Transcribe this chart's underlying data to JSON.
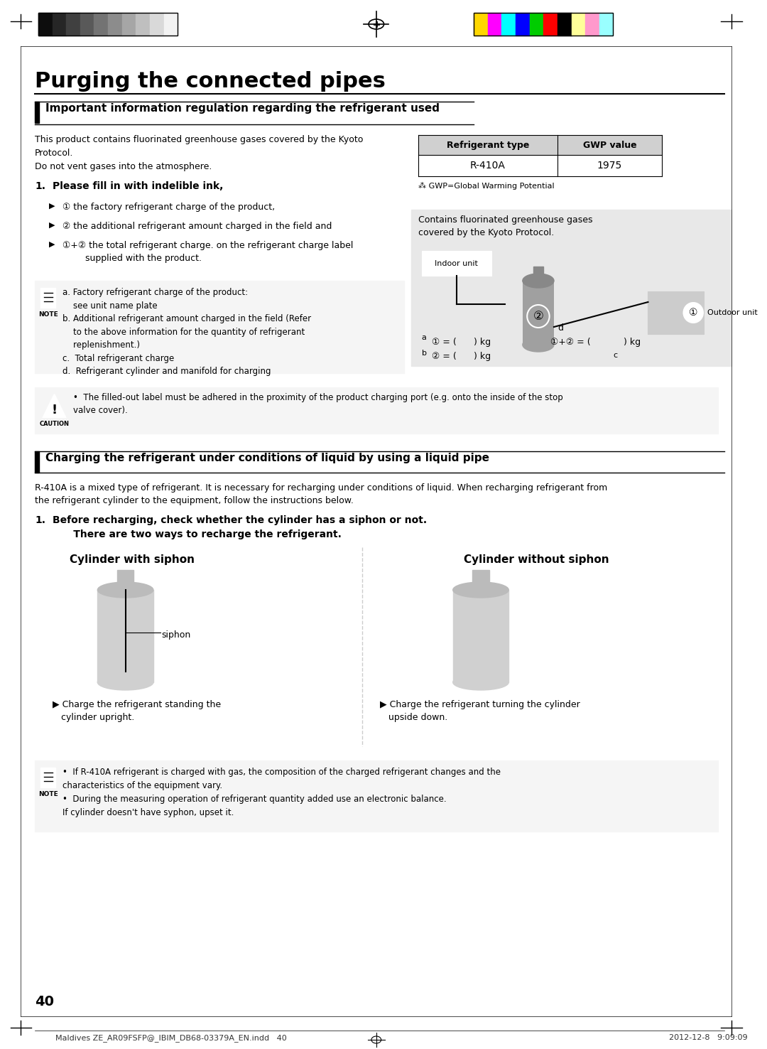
{
  "page_title": "Purging the connected pipes",
  "section1_title": "Important information regulation regarding the refrigerant used",
  "section2_title": "Charging the refrigerant under conditions of liquid by using a liquid pipe",
  "body_text1": "This product contains fluorinated greenhouse gases covered by the Kyoto\nProtocol.\nDo not vent gases into the atmosphere.",
  "numbered_item1": "1.   Please fill in with indelible ink,",
  "bullet1": "▶  ① the factory refrigerant charge of the product,",
  "bullet2": "▶  ② the additional refrigerant amount charged in the field and",
  "bullet3": "▶  ①+② the total refrigerant charge. on the refrigerant charge label\n        supplied with the product.",
  "table_header1": "Refrigerant type",
  "table_header2": "GWP value",
  "table_row1_col1": "R-410A",
  "table_row1_col2": "1975",
  "table_footnote": "⁂ GWP=Global Warming Potential",
  "greenhouse_box_text": "Contains fluorinated greenhouse gases\ncovered by the Kyoto Protocol.",
  "indoor_unit_label": "Indoor unit",
  "outdoor_unit_label": "Outdoor unit",
  "note_text_a": "a. Factory refrigerant charge of the product:\n    see unit name plate",
  "note_text_b": "b. Additional refrigerant amount charged in the field (Refer\n    to the above information for the quantity of refrigerant\n    replenishment.)",
  "note_text_c": "c.  Total refrigerant charge",
  "note_text_d": "d.  Refrigerant cylinder and manifold for charging",
  "caution_text": "The filled-out label must be adhered in the proximity of the product charging port (e.g. onto the inside of the stop\nvalve cover).",
  "section2_body": "R-410A is a mixed type of refrigerant. It is necessary for recharging under conditions of liquid. When recharging refrigerant from\nthe refrigerant cylinder to the equipment, follow the instructions below.",
  "numbered_item2_bold": "1.   Before recharging, check whether the cylinder has a siphon or not.\n      There are two ways to recharge the refrigerant.",
  "cylinder1_title": "Cylinder with siphon",
  "cylinder1_label": "siphon",
  "cylinder1_caption": "▶ Charge the refrigerant standing the\n   cylinder upright.",
  "cylinder2_title": "Cylinder without siphon",
  "cylinder2_caption": "▶ Charge the refrigerant turning the cylinder\n   upside down.",
  "note2_bullet1": "If R-410A refrigerant is charged with gas, the composition of the charged refrigerant changes and the\ncharacteristics of the equipment vary.",
  "note2_bullet2": "During the measuring operation of refrigerant quantity added use an electronic balance.\nIf cylinder doesn't have syphon, upset it.",
  "page_number": "40",
  "footer_left": "Maldives ZE_AR09FSFP@_IBIM_DB68-03379A_EN.indd   40",
  "footer_right": "2012-12-8   9:09:09",
  "bg_color": "#ffffff",
  "text_color": "#000000",
  "section_bar_color": "#000000",
  "table_header_bg": "#d0d0d0",
  "note_bg": "#f5f5f5",
  "caution_bg": "#f5f5f5",
  "greenhouse_box_bg": "#e8e8e8",
  "divider_dashed_color": "#cccccc"
}
